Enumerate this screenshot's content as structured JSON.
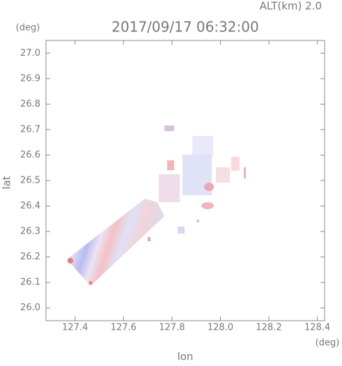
{
  "chart_data": {
    "type": "map",
    "title": "2017/09/17 06:32:00",
    "subtitle": "ALT(km) 2.0",
    "x_label": "lon",
    "y_label": "lat",
    "x_unit": "(deg)",
    "y_unit": "(deg)",
    "xlim": [
      127.28,
      128.43
    ],
    "ylim": [
      25.95,
      27.05
    ],
    "xticks": [
      127.4,
      127.6,
      127.8,
      {
        "value": 128.0,
        "label": "128.0"
      },
      128.2,
      128.4
    ],
    "yticks": [
      {
        "value": 26.0,
        "label": "26.0"
      },
      26.1,
      26.2,
      26.3,
      26.4,
      26.5,
      26.6,
      26.7,
      26.8,
      26.9,
      {
        "value": 27.0,
        "label": "27.0"
      }
    ]
  }
}
